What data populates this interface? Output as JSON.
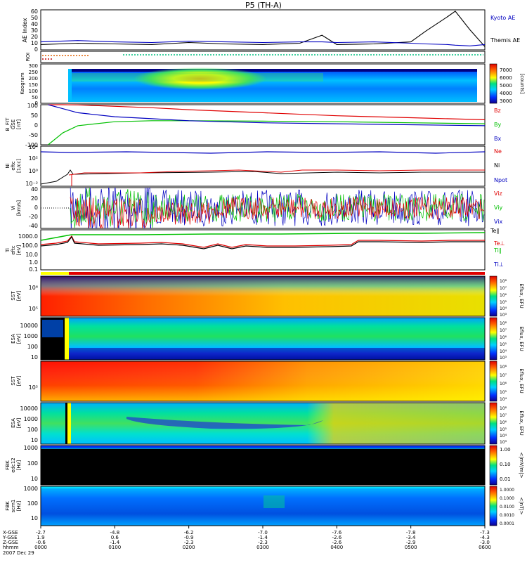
{
  "title": "P5 (TH-A)",
  "footer": {
    "rows": [
      "X-GSE",
      "Y-GSE",
      "Z-GSE",
      "hhmm",
      "2007 Dec 29"
    ],
    "times": [
      "0000",
      "0100",
      "0200",
      "0300",
      "0400",
      "0500",
      "0600"
    ],
    "x_gse": [
      "-2.7",
      "-4.8",
      "-6.2",
      "-7.0",
      "-7.6",
      "-7.8",
      "-7.3"
    ],
    "y_gse": [
      "1.9",
      "0.6",
      "-0.9",
      "-1.4",
      "-2.6",
      "-3.4",
      "-4.3"
    ],
    "z_gse": [
      "-0.6",
      "-1.4",
      "-2.3",
      "-2.3",
      "-2.6",
      "-2.9",
      "-3.0"
    ]
  },
  "panels": {
    "ae": {
      "ylabel": "AE Index",
      "ticks": [
        "60",
        "50",
        "40",
        "30",
        "20",
        "10",
        "0"
      ],
      "legend": [
        "Kyoto AE",
        "Themis AE"
      ]
    },
    "roi": {
      "ylabel": "ROI"
    },
    "keogram": {
      "ylabel": "Keogram",
      "ticks": [
        "300",
        "250",
        "200",
        "150",
        "100",
        "50",
        "0"
      ],
      "cbar_ticks": [
        "7000",
        "6000",
        "5000",
        "4000",
        "3000"
      ],
      "cbar_label": "[counts]"
    },
    "bfit": {
      "ylabel": [
        "B_FIT",
        "GSE",
        "[nT]"
      ],
      "ticks": [
        "100",
        "50",
        "0",
        "-50",
        "-100"
      ],
      "legend": [
        "Bz",
        "By",
        "Bx"
      ]
    },
    "density": {
      "ylabel": [
        "Ni",
        "eftc",
        "[1/cc]"
      ],
      "ticks": [
        "10⁴",
        "10²",
        "10⁰",
        "10⁻²"
      ],
      "legend": [
        "Ne",
        "Ni",
        "Npot"
      ]
    },
    "velocity": {
      "ylabel": [
        "Vi",
        "[km/s]"
      ],
      "ticks": [
        "40",
        "20",
        "0",
        "-20",
        "-40"
      ],
      "legend": [
        "Viz",
        "Viy",
        "Vix"
      ]
    },
    "temperature": {
      "ylabel": [
        "Ti",
        "eftc",
        "[eV]"
      ],
      "ticks": [
        "1000.0",
        "100.0",
        "10.0",
        "1.0",
        "0.1"
      ],
      "legend": [
        "Te∥",
        "Te⊥",
        "Ti∥",
        "Ti⊥"
      ]
    },
    "sst_e": {
      "ylabel": [
        "SST",
        "",
        "[eV]"
      ],
      "ticks": [
        "10⁶",
        "10⁵"
      ],
      "cbar_ticks": [
        "10⁸",
        "10⁷",
        "10⁶",
        "10⁵",
        "10⁴",
        "10³"
      ],
      "cbar_label": "Eflux, EFU"
    },
    "esa_e": {
      "ylabel": [
        "ESA",
        "",
        "[eV]"
      ],
      "ticks": [
        "10000",
        "1000",
        "100",
        "10"
      ],
      "cbar_ticks": [
        "10⁸",
        "10⁷",
        "10⁶",
        "10⁵",
        "10⁴",
        "10³"
      ],
      "cbar_label": "Eflux, EFU"
    },
    "sst_i": {
      "ylabel": [
        "SST",
        "",
        "[eV]"
      ],
      "ticks": [
        "10⁵"
      ],
      "cbar_ticks": [
        "10⁸",
        "10⁷",
        "10⁶",
        "10⁵",
        "10⁴"
      ],
      "cbar_label": "Eflux, EFU"
    },
    "esa_i": {
      "ylabel": [
        "ESA",
        "",
        "[eV]"
      ],
      "ticks": [
        "10000",
        "1000",
        "100",
        "10"
      ],
      "cbar_ticks": [
        "10⁸",
        "10⁷",
        "10⁶",
        "10⁵",
        "10⁴",
        "10³"
      ],
      "cbar_label": "Eflux, EFU"
    },
    "fbk_e": {
      "ylabel": [
        "FBK",
        "edc12",
        "[Hz]"
      ],
      "ticks": [
        "1000",
        "100",
        "10"
      ],
      "cbar_ticks": [
        "1.00",
        "0.10",
        "0.01"
      ],
      "cbar_label": "<|mV/m|>"
    },
    "fbk_b": {
      "ylabel": [
        "FBK",
        "scm1",
        "[Hz]"
      ],
      "ticks": [
        "1000",
        "100",
        "10"
      ],
      "cbar_ticks": [
        "1.0000",
        "0.1000",
        "0.0100",
        "0.0010",
        "0.0001"
      ],
      "cbar_label": "<|nT|>"
    }
  },
  "colors": {
    "red": "#e00000",
    "green": "#00c000",
    "blue": "#0000c0",
    "black": "#000000"
  },
  "chart_data": [
    {
      "type": "line",
      "title": "AE Index",
      "ylabel": "AE Index",
      "ylim": [
        0,
        60
      ],
      "x": [
        0,
        0.5,
        1,
        1.5,
        2,
        2.5,
        3,
        3.5,
        3.8,
        4,
        4.5,
        5,
        5.2,
        5.5,
        5.6,
        5.8,
        6
      ],
      "series": [
        {
          "name": "Themis AE",
          "values": [
            8,
            10,
            9,
            8,
            11,
            9,
            8,
            10,
            22,
            8,
            9,
            12,
            28,
            50,
            58,
            30,
            5
          ]
        },
        {
          "name": "Kyoto AE",
          "values": [
            12,
            14,
            12,
            11,
            13,
            12,
            11,
            12,
            12,
            11,
            12,
            10,
            9,
            8,
            7,
            6,
            8
          ]
        }
      ]
    },
    {
      "type": "line",
      "title": "B_FIT GSE",
      "ylabel": "[nT]",
      "ylim": [
        -100,
        100
      ],
      "x": [
        0.1,
        0.3,
        0.5,
        1,
        1.5,
        2,
        3,
        4,
        5,
        6
      ],
      "series": [
        {
          "name": "Bz",
          "values": [
            100,
            100,
            99,
            92,
            85,
            75,
            60,
            45,
            35,
            25
          ]
        },
        {
          "name": "By",
          "values": [
            -100,
            -40,
            -5,
            15,
            20,
            20,
            18,
            15,
            10,
            5
          ]
        },
        {
          "name": "Bx",
          "values": [
            100,
            80,
            60,
            40,
            30,
            20,
            10,
            5,
            0,
            -5
          ]
        }
      ]
    },
    {
      "type": "line",
      "title": "Vi",
      "ylabel": "[km/s]",
      "ylim": [
        -50,
        50
      ],
      "x": [
        0.5,
        1,
        2,
        3,
        4,
        5,
        6
      ],
      "series": [
        {
          "name": "Viz",
          "values": [
            0,
            0,
            0,
            0,
            0,
            0,
            0
          ]
        },
        {
          "name": "Viy",
          "values": [
            0,
            0,
            0,
            0,
            0,
            0,
            0
          ]
        },
        {
          "name": "Vix",
          "values": [
            0,
            0,
            0,
            0,
            0,
            0,
            0
          ]
        }
      ]
    },
    {
      "type": "line",
      "title": "Ti",
      "ylabel": "[eV]",
      "ylim": [
        0.1,
        3000
      ],
      "x": [
        0.5,
        1,
        1.5,
        2,
        2.5,
        3,
        3.5,
        4,
        4.5,
        5,
        5.5,
        6
      ],
      "series": [
        {
          "name": "Te∥",
          "values": [
            1500,
            1800,
            1700,
            1600,
            1500,
            1500,
            1600,
            1700,
            1800,
            1900,
            2000,
            2000
          ]
        },
        {
          "name": "Te⊥",
          "values": [
            400,
            350,
            320,
            150,
            120,
            110,
            120,
            400,
            500,
            550,
            600,
            600
          ]
        },
        {
          "name": "Ti∥",
          "values": [
            350,
            300,
            280,
            140,
            110,
            100,
            110,
            380,
            480,
            520,
            580,
            580
          ]
        }
      ]
    }
  ]
}
